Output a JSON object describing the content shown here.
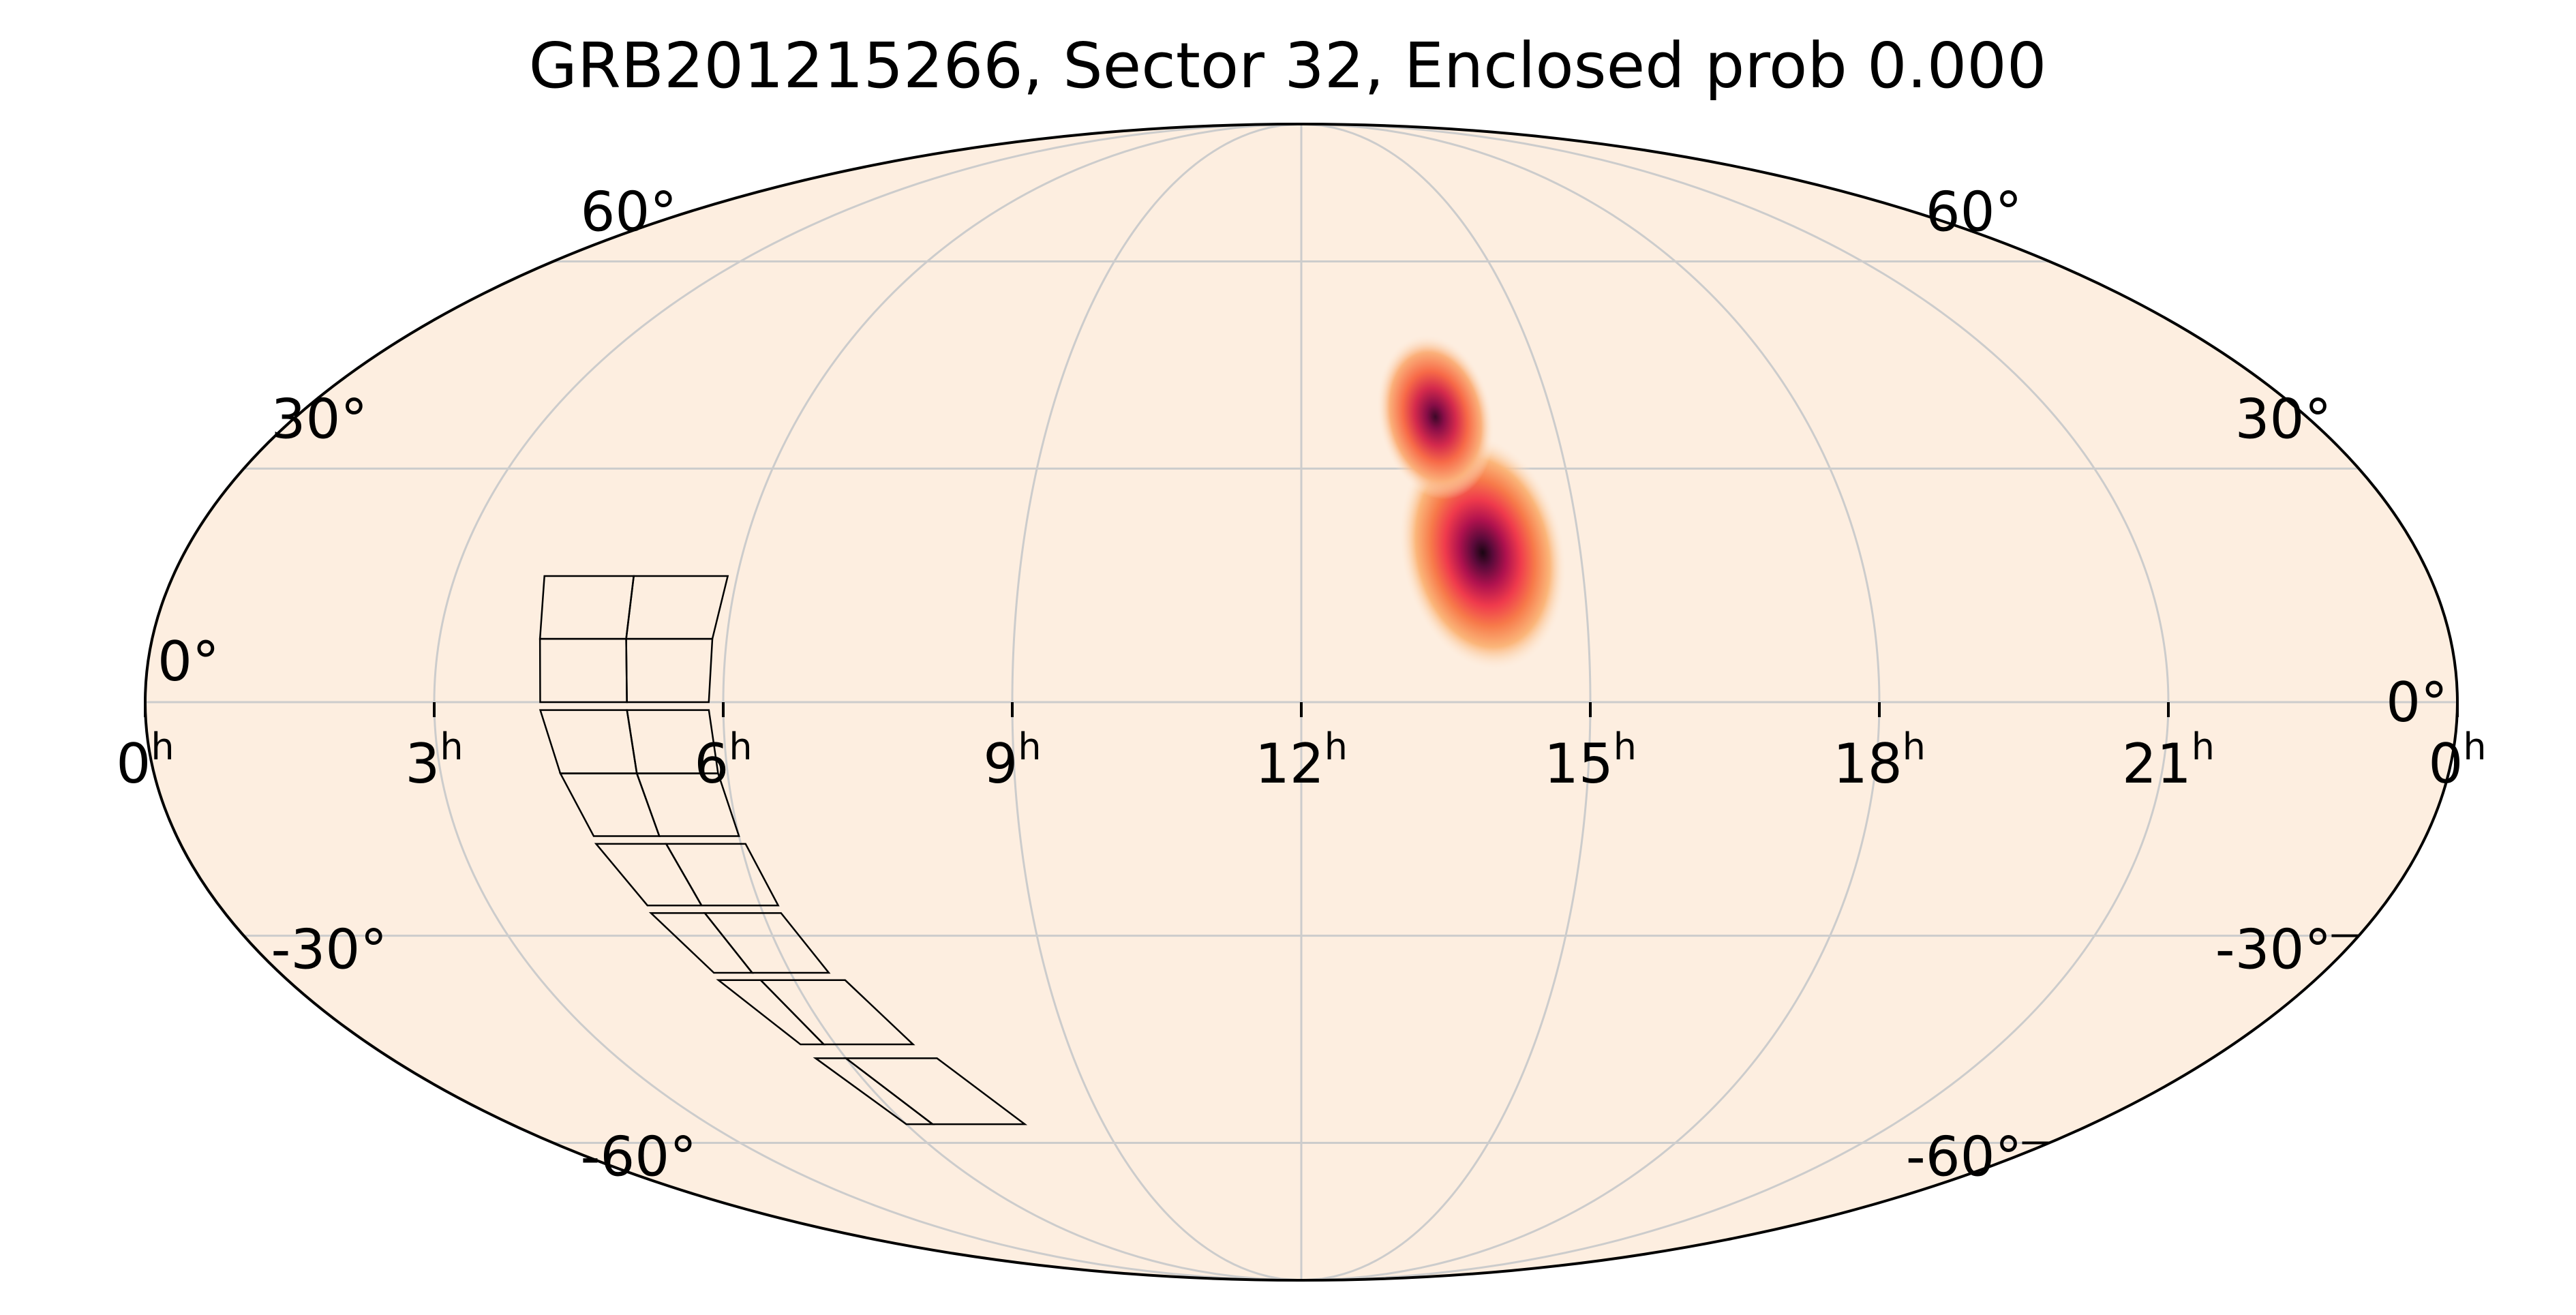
{
  "title": "GRB201215266, Sector 32, Enclosed prob 0.000",
  "map": {
    "projection": "mollweide",
    "background_color": "#fdeee0",
    "grid_color": "#cccccc",
    "outline_color": "#000000",
    "colormap": "magma_r",
    "ra_ticks": [
      {
        "hours": 24,
        "label": "0",
        "sup": "h"
      },
      {
        "hours": 21,
        "label": "21",
        "sup": "h"
      },
      {
        "hours": 18,
        "label": "18",
        "sup": "h"
      },
      {
        "hours": 15,
        "label": "15",
        "sup": "h"
      },
      {
        "hours": 12,
        "label": "12",
        "sup": "h"
      },
      {
        "hours": 9,
        "label": "9",
        "sup": "h"
      },
      {
        "hours": 6,
        "label": "6",
        "sup": "h"
      },
      {
        "hours": 3,
        "label": "3",
        "sup": "h"
      },
      {
        "hours": 0,
        "label": "0",
        "sup": "h"
      }
    ],
    "dec_ticks": [
      {
        "deg": 60,
        "label": "60°"
      },
      {
        "deg": 30,
        "label": "30°"
      },
      {
        "deg": 0,
        "label": "0°"
      },
      {
        "deg": -30,
        "label": "-30°"
      },
      {
        "deg": -60,
        "label": "-60°"
      }
    ],
    "probability_blobs": [
      {
        "ra_hours": 13.95,
        "dec_deg": 19,
        "peak": 1.0
      },
      {
        "ra_hours": 13.6,
        "dec_deg": 37,
        "peak": 0.8
      }
    ],
    "sector_footprint": {
      "name": "Sector 32",
      "cameras": [
        {
          "camera": 1,
          "ccd_quads": [
            [
              [
                5.9,
                16
              ],
              [
                4.9,
                16
              ],
              [
                4.95,
                8
              ],
              [
                5.85,
                8
              ]
            ],
            [
              [
                4.9,
                16
              ],
              [
                3.95,
                16
              ],
              [
                4.05,
                8
              ],
              [
                4.95,
                8
              ]
            ],
            [
              [
                5.85,
                8
              ],
              [
                4.95,
                8
              ],
              [
                5.0,
                0
              ],
              [
                5.85,
                0
              ]
            ],
            [
              [
                4.95,
                8
              ],
              [
                4.05,
                8
              ],
              [
                4.1,
                0
              ],
              [
                5.0,
                0
              ]
            ]
          ]
        },
        {
          "camera": 2,
          "ccd_quads": [
            [
              [
                5.85,
                -1
              ],
              [
                5.0,
                -1
              ],
              [
                5.05,
                -9
              ],
              [
                5.9,
                -9
              ]
            ],
            [
              [
                5.0,
                -1
              ],
              [
                4.1,
                -1
              ],
              [
                4.25,
                -9
              ],
              [
                5.05,
                -9
              ]
            ],
            [
              [
                5.9,
                -9
              ],
              [
                5.05,
                -9
              ],
              [
                5.15,
                -17
              ],
              [
                6.0,
                -17
              ]
            ],
            [
              [
                5.05,
                -9
              ],
              [
                4.25,
                -9
              ],
              [
                4.45,
                -17
              ],
              [
                5.15,
                -17
              ]
            ]
          ]
        },
        {
          "camera": 3,
          "ccd_quads": [
            [
              [
                6.05,
                -18
              ],
              [
                5.2,
                -18
              ],
              [
                5.35,
                -26
              ],
              [
                6.2,
                -26
              ]
            ],
            [
              [
                5.2,
                -18
              ],
              [
                4.45,
                -18
              ],
              [
                4.75,
                -26
              ],
              [
                5.35,
                -26
              ]
            ],
            [
              [
                6.2,
                -27
              ],
              [
                5.35,
                -27
              ],
              [
                5.55,
                -35
              ],
              [
                6.45,
                -35
              ]
            ],
            [
              [
                5.35,
                -27
              ],
              [
                4.75,
                -27
              ],
              [
                5.1,
                -35
              ],
              [
                5.55,
                -35
              ]
            ]
          ]
        },
        {
          "camera": 4,
          "ccd_quads": [
            [
              [
                6.6,
                -36
              ],
              [
                5.6,
                -36
              ],
              [
                5.85,
                -45
              ],
              [
                7.0,
                -45
              ]
            ],
            [
              [
                5.6,
                -36
              ],
              [
                5.1,
                -36
              ],
              [
                5.55,
                -45
              ],
              [
                5.85,
                -45
              ]
            ],
            [
              [
                7.2,
                -47
              ],
              [
                6.0,
                -47
              ],
              [
                6.4,
                -57
              ],
              [
                7.8,
                -57
              ]
            ],
            [
              [
                6.0,
                -47
              ],
              [
                5.6,
                -47
              ],
              [
                6.0,
                -57
              ],
              [
                6.4,
                -57
              ]
            ]
          ]
        }
      ]
    }
  }
}
